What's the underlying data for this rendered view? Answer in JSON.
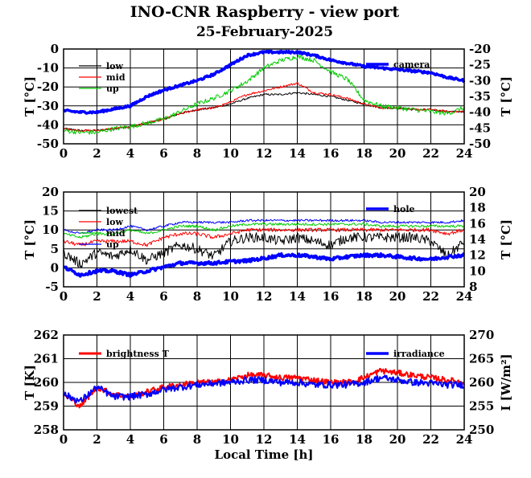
{
  "title": "INO-CNR Raspberry - view port",
  "subtitle": "25-February-2025",
  "colors": {
    "black": "#000000",
    "red": "#ff0000",
    "green": "#00cc00",
    "blue": "#0000ff",
    "grid": "#000000"
  },
  "chart_data": [
    {
      "type": "line",
      "xlabel": "",
      "xlim": [
        0,
        24
      ],
      "x_ticks": [
        "0",
        "2",
        "4",
        "6",
        "8",
        "10",
        "12",
        "14",
        "16",
        "18",
        "20",
        "22",
        "24"
      ],
      "ylabel": "T [°C]",
      "ylim": [
        -50,
        0
      ],
      "y_ticks": [
        "0",
        "-10",
        "-20",
        "-30",
        "-40",
        "-50"
      ],
      "y2label": "T [°C]",
      "y2lim": [
        -50,
        -20
      ],
      "y2_ticks": [
        "-20",
        "-25",
        "-30",
        "-35",
        "-40",
        "-45",
        "-50"
      ],
      "grid": true,
      "legend_left": [
        "low",
        "mid",
        "up"
      ],
      "legend_right": [
        "camera"
      ],
      "x": [
        0,
        1,
        2,
        3,
        4,
        5,
        6,
        7,
        8,
        9,
        10,
        11,
        12,
        13,
        14,
        15,
        16,
        17,
        18,
        19,
        20,
        21,
        22,
        23,
        24
      ],
      "series": [
        {
          "name": "low",
          "color": "#000000",
          "axis": "left",
          "values": [
            -42,
            -43,
            -43,
            -42,
            -41,
            -39,
            -37,
            -34,
            -32,
            -31,
            -29,
            -26,
            -24,
            -24,
            -23,
            -24,
            -25,
            -27,
            -29,
            -31,
            -31,
            -32,
            -32,
            -33,
            -33
          ]
        },
        {
          "name": "mid",
          "color": "#ff0000",
          "axis": "left",
          "values": [
            -42,
            -43,
            -43,
            -42,
            -41,
            -39,
            -37,
            -34,
            -32,
            -31,
            -28,
            -24,
            -22,
            -20,
            -18,
            -23,
            -24,
            -26,
            -29,
            -31,
            -31,
            -32,
            -32,
            -33,
            -33
          ]
        },
        {
          "name": "up",
          "color": "#00cc00",
          "axis": "left",
          "values": [
            -43,
            -44,
            -44,
            -42,
            -41,
            -39,
            -37,
            -33,
            -29,
            -26,
            -22,
            -17,
            -10,
            -6,
            -4,
            -6,
            -12,
            -16,
            -27,
            -30,
            -31,
            -32,
            -33,
            -34,
            -31
          ]
        },
        {
          "name": "camera",
          "color": "#0000ff",
          "axis": "right",
          "values": [
            -39.5,
            -40,
            -40,
            -39,
            -38,
            -35,
            -33,
            -31.5,
            -30,
            -28,
            -25,
            -22,
            -21,
            -21,
            -21,
            -22,
            -23.5,
            -24.5,
            -25.5,
            -26,
            -26.5,
            -27,
            -27.5,
            -29,
            -30
          ]
        }
      ]
    },
    {
      "type": "line",
      "xlabel": "",
      "xlim": [
        0,
        24
      ],
      "x_ticks": [
        "0",
        "2",
        "4",
        "6",
        "8",
        "10",
        "12",
        "14",
        "16",
        "18",
        "20",
        "22",
        "24"
      ],
      "ylabel": "T [°C]",
      "ylim": [
        -5,
        20
      ],
      "y_ticks": [
        "20",
        "15",
        "10",
        "5",
        "0",
        "-5"
      ],
      "y2label": "T [°C]",
      "y2lim": [
        8,
        20
      ],
      "y2_ticks": [
        "20",
        "18",
        "16",
        "14",
        "12",
        "10",
        "8"
      ],
      "grid": true,
      "legend_left": [
        "lowest",
        "low",
        "mid",
        "up"
      ],
      "legend_right": [
        "hole"
      ],
      "x": [
        0,
        1,
        2,
        3,
        4,
        5,
        6,
        7,
        8,
        9,
        10,
        11,
        12,
        13,
        14,
        15,
        16,
        17,
        18,
        19,
        20,
        21,
        22,
        23,
        24
      ],
      "series": [
        {
          "name": "lowest",
          "color": "#000000",
          "axis": "left",
          "values": [
            4,
            1,
            4,
            3,
            5,
            2,
            4,
            6,
            5,
            3,
            7,
            8,
            8,
            7,
            8,
            7,
            6,
            8,
            8,
            8,
            8,
            8,
            7,
            3,
            7
          ]
        },
        {
          "name": "low",
          "color": "#ff0000",
          "axis": "left",
          "values": [
            7,
            6,
            7,
            7,
            7,
            6,
            8,
            9,
            9,
            8,
            9,
            10,
            10,
            10,
            10,
            10,
            10,
            10,
            10,
            10,
            10,
            10,
            10,
            9,
            10
          ]
        },
        {
          "name": "mid",
          "color": "#00cc00",
          "axis": "left",
          "values": [
            9,
            8,
            9,
            9,
            10,
            9,
            10,
            11,
            11,
            10,
            11,
            11.5,
            11.5,
            11.5,
            11.5,
            11.5,
            11.5,
            11.5,
            11.5,
            11,
            11,
            11,
            11,
            11,
            11
          ]
        },
        {
          "name": "up",
          "color": "#0000ff",
          "axis": "left",
          "values": [
            10,
            9,
            10,
            10,
            11,
            10,
            11,
            12,
            12,
            12,
            12,
            12.5,
            12.5,
            12.5,
            12.5,
            12.5,
            12.5,
            12.5,
            12.5,
            12,
            12,
            12,
            12,
            12,
            12.5
          ]
        },
        {
          "name": "hole",
          "color": "#0000ff",
          "axis": "right",
          "values": [
            10.5,
            9.5,
            10,
            10,
            9.5,
            10,
            10.5,
            11,
            11,
            11,
            11.2,
            11.3,
            11.6,
            12,
            12,
            11.8,
            11.5,
            11.8,
            12,
            12,
            11.8,
            11.6,
            11.5,
            11.8,
            12
          ]
        }
      ]
    },
    {
      "type": "line",
      "xlabel": "Local Time [h]",
      "xlim": [
        0,
        24
      ],
      "x_ticks": [
        "0",
        "2",
        "4",
        "6",
        "8",
        "10",
        "12",
        "14",
        "16",
        "18",
        "20",
        "22",
        "24"
      ],
      "ylabel": "T [K]",
      "ylim": [
        258,
        262
      ],
      "y_ticks": [
        "262",
        "261",
        "260",
        "259",
        "258"
      ],
      "y2label": "I [W/m²]",
      "y2lim": [
        250,
        270
      ],
      "y2_ticks": [
        "270",
        "265",
        "260",
        "255",
        "250"
      ],
      "grid": true,
      "legend_left": [
        "brightness T"
      ],
      "legend_right": [
        "irradiance"
      ],
      "x": [
        0,
        1,
        2,
        3,
        4,
        5,
        6,
        7,
        8,
        9,
        10,
        11,
        12,
        13,
        14,
        15,
        16,
        17,
        18,
        19,
        20,
        21,
        22,
        23,
        24
      ],
      "series": [
        {
          "name": "brightness T",
          "color": "#ff0000",
          "axis": "left",
          "values": [
            259.5,
            259,
            259.8,
            259.5,
            259.4,
            259.6,
            259.8,
            259.9,
            260,
            260,
            260.1,
            260.3,
            260.3,
            260.2,
            260.2,
            260.1,
            260,
            260,
            260.2,
            260.5,
            260.4,
            260.3,
            260.2,
            260.1,
            260
          ]
        },
        {
          "name": "irradiance",
          "color": "#0000ff",
          "axis": "right",
          "values": [
            257.5,
            256,
            259,
            257,
            257,
            257.5,
            258.5,
            259,
            259.5,
            259.8,
            260,
            260.5,
            260.5,
            260,
            260,
            259.5,
            259.5,
            259.5,
            260,
            261,
            260.5,
            260,
            259.8,
            259.5,
            259.5
          ]
        }
      ]
    }
  ]
}
